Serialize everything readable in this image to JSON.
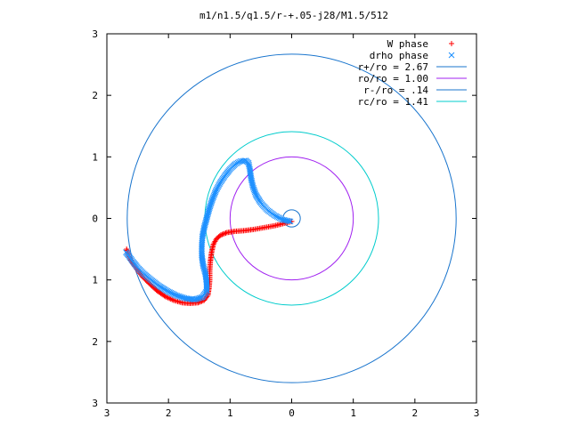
{
  "chart_data": {
    "type": "scatter",
    "title": "m1/n1.5/q1.5/r-+.05-j28/M1.5/512",
    "xlabel": "",
    "ylabel": "",
    "xlim": [
      -3,
      3
    ],
    "ylim": [
      -3,
      3
    ],
    "x_ticks": [
      -3,
      -2,
      -1,
      0,
      1,
      2,
      3
    ],
    "y_ticks": [
      -3,
      -2,
      -1,
      0,
      1,
      2,
      3
    ],
    "x_tick_labels": [
      "3",
      "2",
      "1",
      "0",
      "1",
      "2",
      "3"
    ],
    "y_tick_labels": [
      "3",
      "2",
      "1",
      "0",
      "1",
      "2",
      "3"
    ],
    "grid": false,
    "legend_position": "top-right",
    "series": [
      {
        "name": "W phase",
        "kind": "points",
        "marker": "plus",
        "color": "#ff0000",
        "points": [
          [
            0.0,
            -0.05
          ],
          [
            -0.12,
            -0.08
          ],
          [
            -0.28,
            -0.12
          ],
          [
            -0.45,
            -0.15
          ],
          [
            -0.62,
            -0.18
          ],
          [
            -0.78,
            -0.2
          ],
          [
            -0.92,
            -0.21
          ],
          [
            -1.05,
            -0.23
          ],
          [
            -1.15,
            -0.27
          ],
          [
            -1.22,
            -0.33
          ],
          [
            -1.27,
            -0.42
          ],
          [
            -1.3,
            -0.55
          ],
          [
            -1.32,
            -0.7
          ],
          [
            -1.33,
            -0.85
          ],
          [
            -1.33,
            -1.0
          ],
          [
            -1.34,
            -1.12
          ],
          [
            -1.36,
            -1.25
          ],
          [
            -1.42,
            -1.33
          ],
          [
            -1.52,
            -1.37
          ],
          [
            -1.65,
            -1.38
          ],
          [
            -1.78,
            -1.37
          ],
          [
            -1.92,
            -1.33
          ],
          [
            -2.05,
            -1.27
          ],
          [
            -2.18,
            -1.18
          ],
          [
            -2.3,
            -1.07
          ],
          [
            -2.42,
            -0.95
          ],
          [
            -2.52,
            -0.82
          ],
          [
            -2.6,
            -0.7
          ],
          [
            -2.65,
            -0.6
          ],
          [
            -2.68,
            -0.5
          ]
        ]
      },
      {
        "name": "drho phase",
        "kind": "points",
        "marker": "cross",
        "color": "#1e90ff",
        "points": [
          [
            -0.02,
            -0.05
          ],
          [
            -0.15,
            -0.02
          ],
          [
            -0.28,
            0.05
          ],
          [
            -0.4,
            0.14
          ],
          [
            -0.5,
            0.25
          ],
          [
            -0.58,
            0.38
          ],
          [
            -0.63,
            0.52
          ],
          [
            -0.66,
            0.66
          ],
          [
            -0.68,
            0.8
          ],
          [
            -0.7,
            0.9
          ],
          [
            -0.75,
            0.94
          ],
          [
            -0.83,
            0.93
          ],
          [
            -0.92,
            0.88
          ],
          [
            -1.0,
            0.8
          ],
          [
            -1.08,
            0.7
          ],
          [
            -1.16,
            0.58
          ],
          [
            -1.23,
            0.45
          ],
          [
            -1.29,
            0.3
          ],
          [
            -1.34,
            0.15
          ],
          [
            -1.38,
            0.0
          ],
          [
            -1.42,
            -0.15
          ],
          [
            -1.45,
            -0.3
          ],
          [
            -1.46,
            -0.45
          ],
          [
            -1.46,
            -0.6
          ],
          [
            -1.44,
            -0.75
          ],
          [
            -1.4,
            -0.9
          ],
          [
            -1.38,
            -1.05
          ],
          [
            -1.38,
            -1.18
          ],
          [
            -1.45,
            -1.28
          ],
          [
            -1.58,
            -1.32
          ],
          [
            -1.72,
            -1.3
          ],
          [
            -1.88,
            -1.25
          ],
          [
            -2.02,
            -1.18
          ],
          [
            -2.15,
            -1.1
          ],
          [
            -2.28,
            -1.0
          ],
          [
            -2.4,
            -0.9
          ],
          [
            -2.5,
            -0.8
          ],
          [
            -2.58,
            -0.7
          ],
          [
            -2.65,
            -0.6
          ],
          [
            -2.69,
            -0.55
          ]
        ]
      },
      {
        "name": "r+/ro = 2.67",
        "kind": "circle",
        "radius": 2.67,
        "color": "#1874cd"
      },
      {
        "name": "ro/ro = 1.00",
        "kind": "circle",
        "radius": 1.0,
        "color": "#a020f0"
      },
      {
        "name": "r-/ro =  .14",
        "kind": "circle",
        "radius": 0.14,
        "color": "#1874cd"
      },
      {
        "name": "rc/ro = 1.41",
        "kind": "circle",
        "radius": 1.41,
        "color": "#00cccc"
      }
    ]
  }
}
